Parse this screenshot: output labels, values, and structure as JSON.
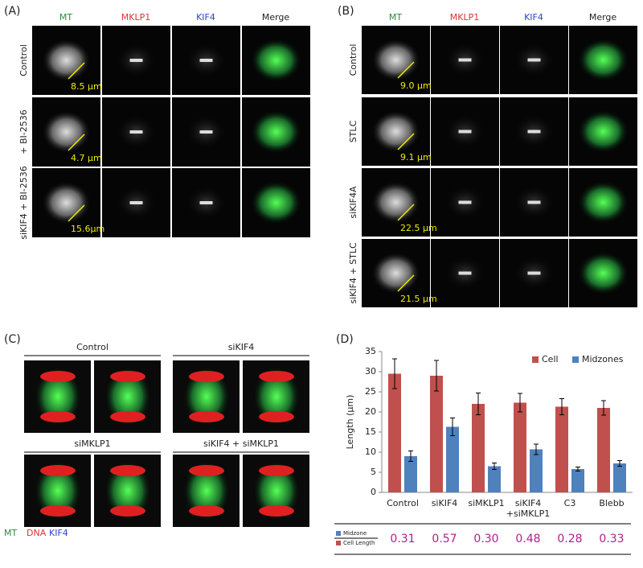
{
  "panel_a": {
    "label": "(A)",
    "columns": [
      "MT",
      "MKLP1",
      "KIF4",
      "Merge"
    ],
    "rows": [
      {
        "label": "Control",
        "measurement": "8.5 µm"
      },
      {
        "label": "+ BI-2536",
        "measurement": "4.7 µm"
      },
      {
        "label": "siKIF4 + BI-2536",
        "measurement": "15.6µm"
      }
    ]
  },
  "panel_b": {
    "label": "(B)",
    "columns": [
      "MT",
      "MKLP1",
      "KIF4",
      "Merge"
    ],
    "rows": [
      {
        "label": "Control",
        "measurement": "9.0 µm"
      },
      {
        "label": "STLC",
        "measurement": "9.1 µm"
      },
      {
        "label": "siKIF4A",
        "measurement": "22.5 µm"
      },
      {
        "label": "siKIF4 + STLC",
        "measurement": "21.5 µm"
      }
    ]
  },
  "panel_c": {
    "label": "(C)",
    "groups": [
      "Control",
      "siKIF4",
      "siMKLP1",
      "siKIF4 + siMKLP1"
    ],
    "legend": [
      "MT",
      "DNA",
      "KIF4"
    ]
  },
  "chart_data": {
    "type": "bar",
    "panel_label": "(D)",
    "y_label": "Length (µm)",
    "categories": [
      "Control",
      "siKIF4",
      "siMKLP1",
      "siKIF4\n+siMKLP1",
      "C3",
      "Blebb"
    ],
    "series": [
      {
        "name": "Cell",
        "color": "#c0504d",
        "values": [
          29.5,
          29,
          22,
          22.3,
          21.3,
          21
        ],
        "errors": [
          3.7,
          3.8,
          2.7,
          2.3,
          2,
          1.8
        ]
      },
      {
        "name": "Midzones",
        "color": "#4f81bd",
        "values": [
          9,
          16.3,
          6.5,
          10.7,
          5.8,
          7.2
        ],
        "errors": [
          1.3,
          2.2,
          0.8,
          1.3,
          0.5,
          0.7
        ]
      }
    ],
    "ylim": [
      0,
      35
    ],
    "yticks": [
      0,
      5,
      10,
      15,
      20,
      25,
      30,
      35
    ],
    "legend": "upper right"
  },
  "ratio_table": {
    "numerator": "Midzone",
    "denominator": "Cell Length",
    "values": [
      "0.31",
      "0.57",
      "0.30",
      "0.48",
      "0.28",
      "0.33"
    ]
  }
}
